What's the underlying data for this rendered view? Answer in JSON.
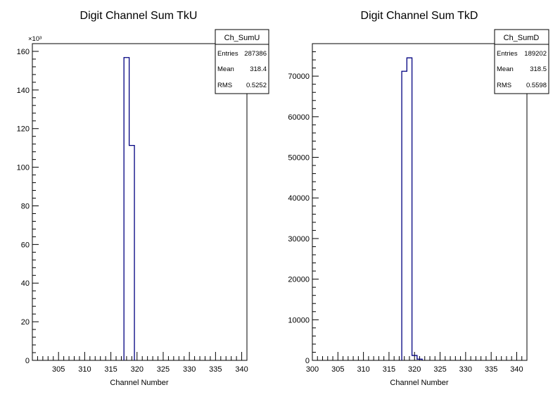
{
  "chart_data": [
    {
      "type": "bar",
      "title": "Digit Channel Sum TkU",
      "xlabel": "Channel Number",
      "ylabel": "",
      "exponent_label": "×10³",
      "xlim": [
        300,
        341
      ],
      "ylim": [
        0,
        164000
      ],
      "x_ticks": [
        305,
        310,
        315,
        320,
        325,
        330,
        335,
        340
      ],
      "y_ticks": [
        0,
        20000,
        40000,
        60000,
        80000,
        100000,
        120000,
        140000,
        160000
      ],
      "y_tick_labels": [
        "0",
        "20",
        "40",
        "60",
        "80",
        "100",
        "120",
        "140",
        "160"
      ],
      "bins": [
        {
          "x0": 317.5,
          "x1": 318.5,
          "value": 156800
        },
        {
          "x0": 318.5,
          "x1": 319.5,
          "value": 111300
        }
      ],
      "line_color": "#000080",
      "stats": {
        "name": "Ch_SumU",
        "rows": [
          {
            "label": "Entries",
            "value": "287386"
          },
          {
            "label": "Mean",
            "value": "318.4"
          },
          {
            "label": "RMS",
            "value": "0.5252"
          }
        ]
      }
    },
    {
      "type": "bar",
      "title": "Digit Channel Sum TkD",
      "xlabel": "Channel Number",
      "ylabel": "",
      "exponent_label": "",
      "xlim": [
        300,
        342
      ],
      "ylim": [
        0,
        78000
      ],
      "x_ticks": [
        300,
        305,
        310,
        315,
        320,
        325,
        330,
        335,
        340
      ],
      "y_ticks": [
        0,
        10000,
        20000,
        30000,
        40000,
        50000,
        60000,
        70000
      ],
      "y_tick_labels": [
        "0",
        "10000",
        "20000",
        "30000",
        "40000",
        "50000",
        "60000",
        "70000"
      ],
      "bins": [
        {
          "x0": 317.5,
          "x1": 318.5,
          "value": 71200
        },
        {
          "x0": 318.5,
          "x1": 319.5,
          "value": 74500
        },
        {
          "x0": 319.5,
          "x1": 320.5,
          "value": 1200
        },
        {
          "x0": 320.5,
          "x1": 321.5,
          "value": 300
        }
      ],
      "line_color": "#000080",
      "stats": {
        "name": "Ch_SumD",
        "rows": [
          {
            "label": "Entries",
            "value": "189202"
          },
          {
            "label": "Mean",
            "value": "318.5"
          },
          {
            "label": "RMS",
            "value": "0.5598"
          }
        ]
      }
    }
  ]
}
